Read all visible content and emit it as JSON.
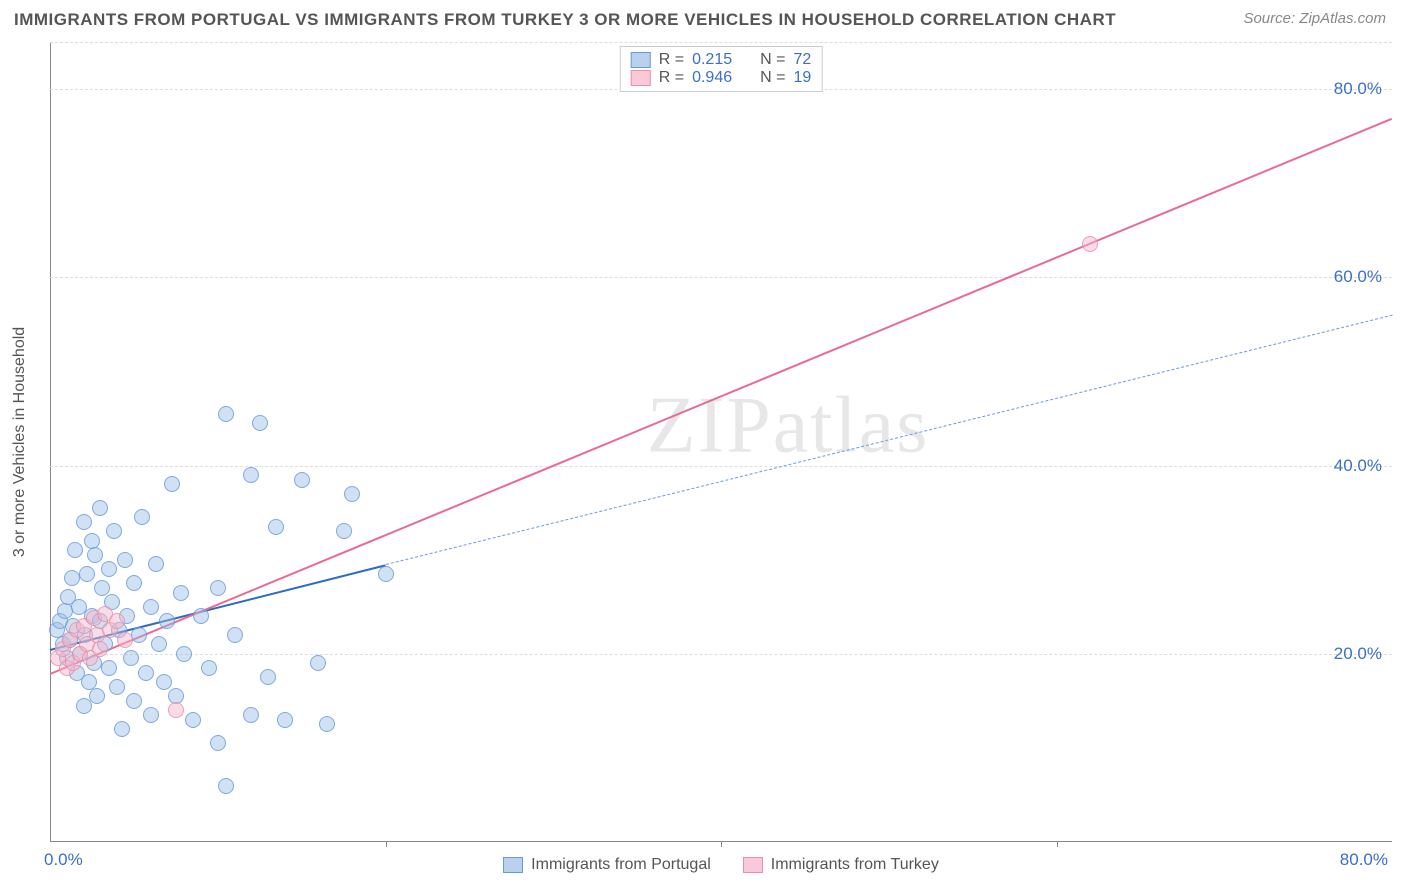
{
  "title": "IMMIGRANTS FROM PORTUGAL VS IMMIGRANTS FROM TURKEY 3 OR MORE VEHICLES IN HOUSEHOLD CORRELATION CHART",
  "source_label": "Source: ZipAtlas.com",
  "watermark": "ZIPatlas",
  "chart": {
    "type": "scatter-with-regression",
    "background_color": "#ffffff",
    "grid_color": "#dddddd",
    "axis_color": "#888888",
    "xlim": [
      0,
      80
    ],
    "ylim": [
      0,
      85
    ],
    "x_tick_labels": {
      "min": "0.0%",
      "max": "80.0%"
    },
    "y_ticks": [
      20,
      40,
      60,
      80
    ],
    "y_tick_labels": [
      "20.0%",
      "40.0%",
      "60.0%",
      "80.0%"
    ],
    "x_tick_marks": [
      20,
      40,
      60
    ],
    "ylabel": "3 or more Vehicles in Household",
    "label_color": "#555555",
    "tick_label_color": "#3b6fc9",
    "tick_fontsize": 17,
    "label_fontsize": 16,
    "marker_size": 16,
    "series": [
      {
        "id": "portugal",
        "label": "Immigrants from Portugal",
        "color_fill": "rgba(155,190,230,0.55)",
        "color_stroke": "#6a9bd8",
        "R": "0.215",
        "N": "72",
        "regression": {
          "solid": {
            "x1": 0,
            "y1": 20.5,
            "x2": 20,
            "y2": 29.5,
            "width": 2.5,
            "color": "#2e6bbd"
          },
          "dashed": {
            "x1": 20,
            "y1": 29.5,
            "x2": 80,
            "y2": 56,
            "width": 1.5,
            "color": "#6a9bd8",
            "dash": "6,5"
          }
        },
        "points": [
          [
            0.4,
            22.5
          ],
          [
            0.6,
            23.5
          ],
          [
            0.8,
            21.0
          ],
          [
            0.9,
            24.5
          ],
          [
            1.0,
            19.5
          ],
          [
            1.1,
            26.0
          ],
          [
            1.2,
            21.5
          ],
          [
            1.3,
            28.0
          ],
          [
            1.4,
            23.0
          ],
          [
            1.5,
            31.0
          ],
          [
            1.6,
            18.0
          ],
          [
            1.7,
            25.0
          ],
          [
            1.8,
            20.0
          ],
          [
            2.0,
            34.0
          ],
          [
            2.0,
            14.5
          ],
          [
            2.1,
            22.0
          ],
          [
            2.2,
            28.5
          ],
          [
            2.3,
            17.0
          ],
          [
            2.5,
            32.0
          ],
          [
            2.5,
            24.0
          ],
          [
            2.6,
            19.0
          ],
          [
            2.7,
            30.5
          ],
          [
            2.8,
            15.5
          ],
          [
            3.0,
            23.5
          ],
          [
            3.0,
            35.5
          ],
          [
            3.1,
            27.0
          ],
          [
            3.3,
            21.0
          ],
          [
            3.5,
            18.5
          ],
          [
            3.5,
            29.0
          ],
          [
            3.7,
            25.5
          ],
          [
            3.8,
            33.0
          ],
          [
            4.0,
            16.5
          ],
          [
            4.1,
            22.5
          ],
          [
            4.3,
            12.0
          ],
          [
            4.5,
            30.0
          ],
          [
            4.6,
            24.0
          ],
          [
            4.8,
            19.5
          ],
          [
            5.0,
            27.5
          ],
          [
            5.0,
            15.0
          ],
          [
            5.3,
            22.0
          ],
          [
            5.5,
            34.5
          ],
          [
            5.7,
            18.0
          ],
          [
            6.0,
            25.0
          ],
          [
            6.0,
            13.5
          ],
          [
            6.3,
            29.5
          ],
          [
            6.5,
            21.0
          ],
          [
            6.8,
            17.0
          ],
          [
            7.0,
            23.5
          ],
          [
            7.3,
            38.0
          ],
          [
            7.5,
            15.5
          ],
          [
            7.8,
            26.5
          ],
          [
            8.0,
            20.0
          ],
          [
            8.5,
            13.0
          ],
          [
            9.0,
            24.0
          ],
          [
            9.5,
            18.5
          ],
          [
            10.0,
            27.0
          ],
          [
            10.0,
            10.5
          ],
          [
            10.5,
            6.0
          ],
          [
            10.5,
            45.5
          ],
          [
            11.0,
            22.0
          ],
          [
            12.0,
            39.0
          ],
          [
            12.0,
            13.5
          ],
          [
            12.5,
            44.5
          ],
          [
            13.0,
            17.5
          ],
          [
            13.5,
            33.5
          ],
          [
            14.0,
            13.0
          ],
          [
            15.0,
            38.5
          ],
          [
            16.0,
            19.0
          ],
          [
            16.5,
            12.5
          ],
          [
            17.5,
            33.0
          ],
          [
            18.0,
            37.0
          ],
          [
            20.0,
            28.5
          ]
        ]
      },
      {
        "id": "turkey",
        "label": "Immigrants from Turkey",
        "color_fill": "rgba(245,180,200,0.55)",
        "color_stroke": "#e98fab",
        "R": "0.946",
        "N": "19",
        "regression": {
          "solid": {
            "x1": 0,
            "y1": 18.0,
            "x2": 80,
            "y2": 77.0,
            "width": 2,
            "color": "#e86b94"
          }
        },
        "points": [
          [
            0.5,
            19.5
          ],
          [
            0.8,
            20.5
          ],
          [
            1.0,
            18.5
          ],
          [
            1.2,
            21.5
          ],
          [
            1.4,
            19.0
          ],
          [
            1.6,
            22.5
          ],
          [
            1.8,
            20.0
          ],
          [
            2.0,
            23.0
          ],
          [
            2.2,
            21.0
          ],
          [
            2.4,
            19.5
          ],
          [
            2.6,
            23.8
          ],
          [
            2.8,
            22.0
          ],
          [
            3.0,
            20.5
          ],
          [
            3.3,
            24.2
          ],
          [
            3.6,
            22.5
          ],
          [
            4.0,
            23.5
          ],
          [
            4.5,
            21.5
          ],
          [
            7.5,
            14.0
          ],
          [
            62.0,
            63.5
          ]
        ]
      }
    ],
    "legend_top": {
      "rows": [
        {
          "swatch": "blue",
          "r_label": "R =",
          "r_val": "0.215",
          "n_label": "N =",
          "n_val": "72"
        },
        {
          "swatch": "pink",
          "r_label": "R =",
          "r_val": "0.946",
          "n_label": "N =",
          "n_val": "19"
        }
      ]
    },
    "legend_bottom": [
      {
        "swatch": "blue",
        "label": "Immigrants from Portugal"
      },
      {
        "swatch": "pink",
        "label": "Immigrants from Turkey"
      }
    ]
  }
}
